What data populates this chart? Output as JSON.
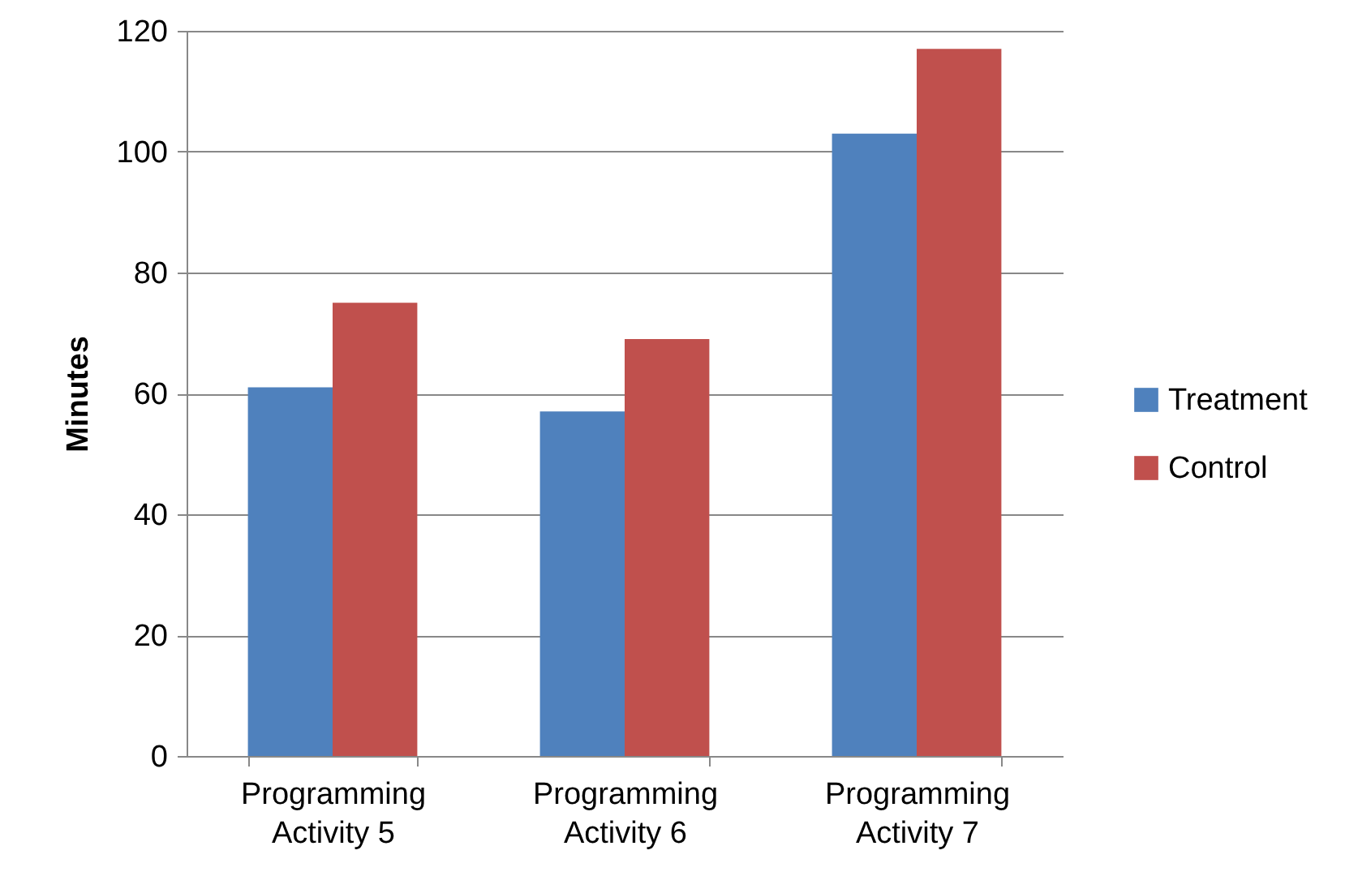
{
  "chart_data": {
    "type": "bar",
    "ylabel": "Minutes",
    "categories": [
      "Programming Activity 5",
      "Programming Activity 6",
      "Programming Activity 7"
    ],
    "series": [
      {
        "name": "Treatment",
        "color": "#4f81bd",
        "values": [
          61,
          57,
          103
        ]
      },
      {
        "name": "Control",
        "color": "#c0504d",
        "values": [
          75,
          69,
          117
        ]
      }
    ],
    "ylim": [
      0,
      120
    ],
    "yticks": [
      0,
      20,
      40,
      60,
      80,
      100,
      120
    ],
    "grid": "y",
    "legend": "right"
  }
}
